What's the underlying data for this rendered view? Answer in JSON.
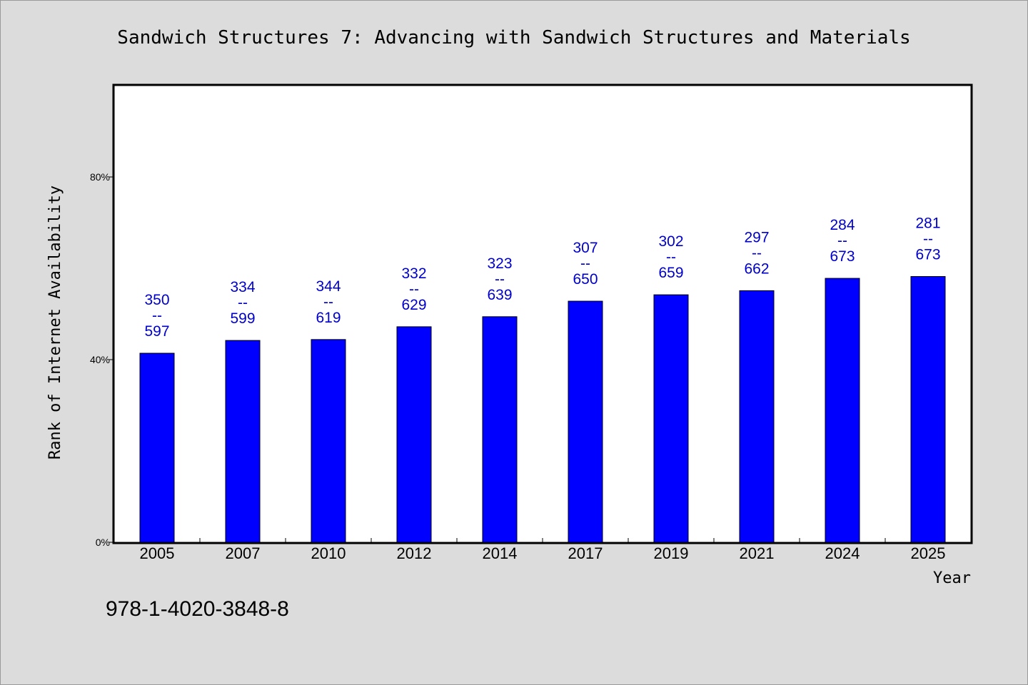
{
  "footer_text": "978-1-4020-3848-8",
  "colors": {
    "bar": "#0000ff",
    "label": "#0000cc",
    "background": "#dcdcdc",
    "plot_bg": "#ffffff"
  },
  "chart_data": {
    "type": "bar",
    "title": "Sandwich Structures 7: Advancing with Sandwich Structures and Materials",
    "xlabel": "Year",
    "ylabel": "Rank of Internet Availability",
    "ylim": [
      0,
      100
    ],
    "yticks": [
      0,
      40,
      80
    ],
    "ytick_labels": [
      "0%",
      "40%",
      "80%"
    ],
    "grid": false,
    "categories": [
      "2005",
      "2007",
      "2010",
      "2012",
      "2014",
      "2017",
      "2019",
      "2021",
      "2024",
      "2025"
    ],
    "values": [
      41.4,
      44.2,
      44.4,
      47.2,
      49.4,
      52.8,
      54.2,
      55.1,
      57.8,
      58.2
    ],
    "data_labels": [
      [
        "350",
        "--",
        "597"
      ],
      [
        "334",
        "--",
        "599"
      ],
      [
        "344",
        "--",
        "619"
      ],
      [
        "332",
        "--",
        "629"
      ],
      [
        "323",
        "--",
        "639"
      ],
      [
        "307",
        "--",
        "650"
      ],
      [
        "302",
        "--",
        "659"
      ],
      [
        "297",
        "--",
        "662"
      ],
      [
        "284",
        "--",
        "673"
      ],
      [
        "281",
        "--",
        "673"
      ]
    ]
  }
}
